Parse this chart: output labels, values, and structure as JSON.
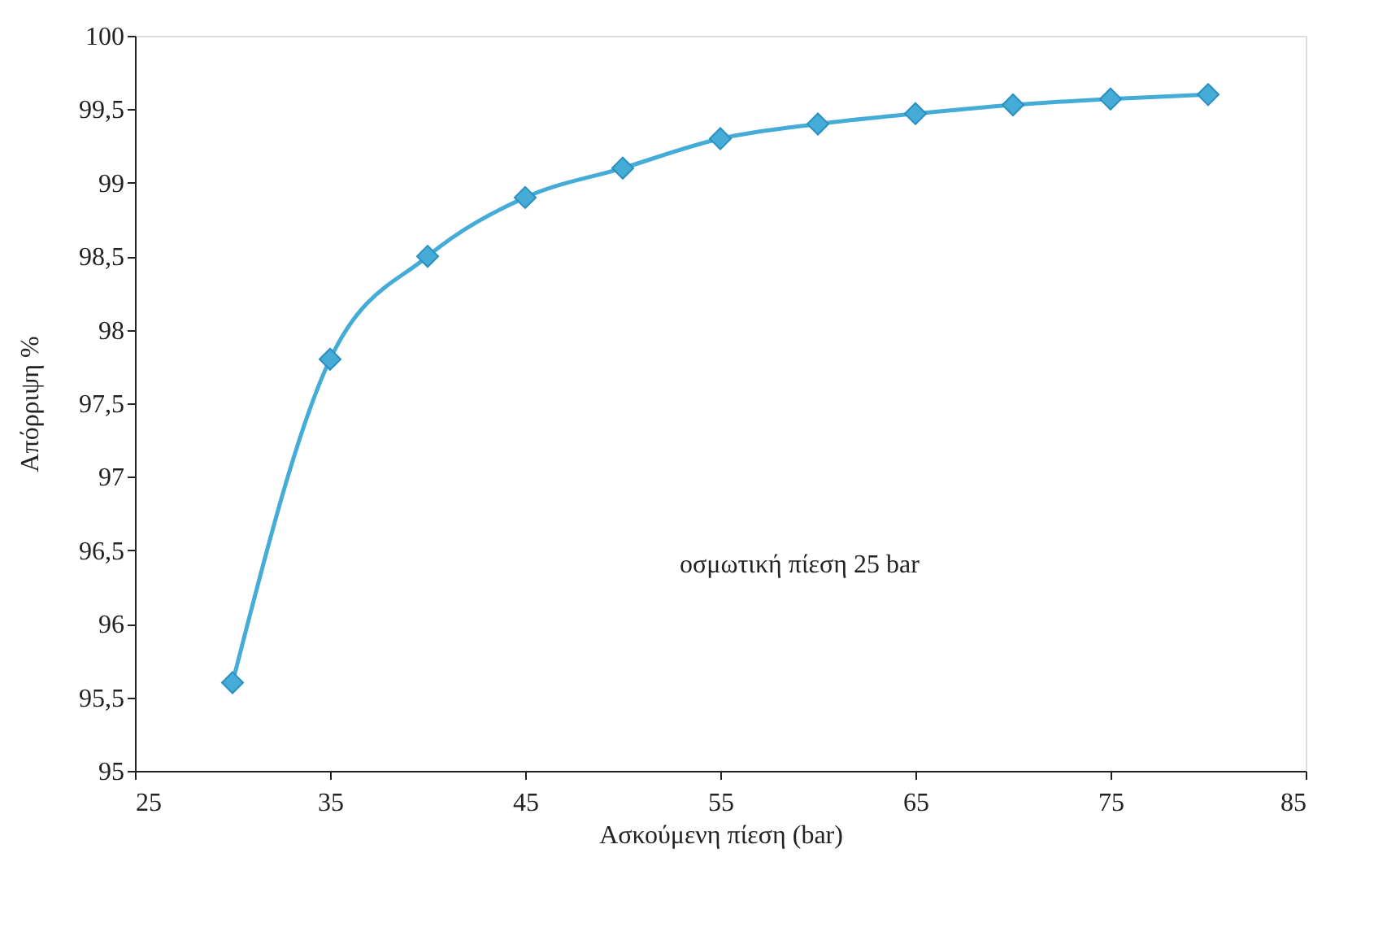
{
  "chart_data": {
    "type": "line",
    "xlabel": "Ασκούμενη πίεση (bar)",
    "ylabel": "Απόρριψη %",
    "x": [
      30,
      35,
      40,
      45,
      50,
      55,
      60,
      65,
      70,
      75,
      80
    ],
    "series": [
      {
        "color": "#45acd8",
        "values": [
          95.6,
          97.8,
          98.5,
          98.9,
          99.1,
          99.3,
          99.4,
          99.47,
          99.53,
          99.57,
          99.6
        ]
      }
    ],
    "xlim": [
      25,
      85
    ],
    "xticks": [
      25,
      35,
      45,
      55,
      65,
      75,
      85
    ],
    "ylim": [
      95,
      100
    ],
    "yticks": [
      95,
      {
        "value": 95.5,
        "label": "95,5"
      },
      96,
      {
        "value": 96.5,
        "label": "96,5"
      },
      97,
      {
        "value": 97.5,
        "label": "97,5"
      },
      98,
      {
        "value": 98.5,
        "label": "98,5"
      },
      99,
      {
        "value": 99.5,
        "label": "99,5"
      },
      100
    ],
    "annotations": [
      "οσμωτική πίεση 25 bar"
    ],
    "marker": "diamond",
    "line_style": "solid",
    "grid": false,
    "legend": false
  }
}
